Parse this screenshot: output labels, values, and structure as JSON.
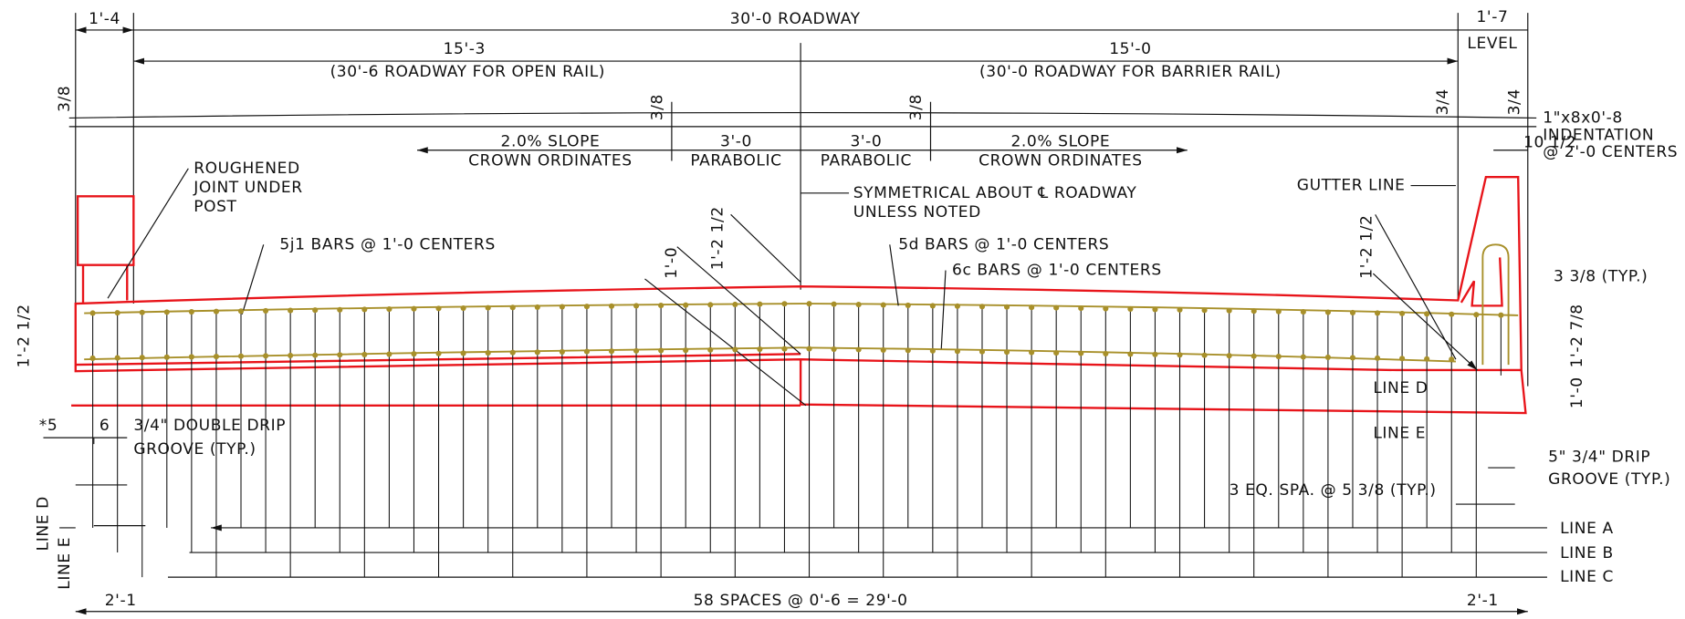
{
  "dimensions": {
    "left_overhang": "1'-4",
    "roadway": "30'-0 ROADWAY",
    "right_overhang": "1'-7",
    "level": "LEVEL",
    "left_half": "15'-3",
    "left_half_note": "(30'-6 ROADWAY FOR OPEN RAIL)",
    "right_half": "15'-0",
    "right_half_note": "(30'-0 ROADWAY FOR BARRIER RAIL)",
    "left_rise": "3/8",
    "crown_rise_left": "3/8",
    "crown_rise_right": "3/8",
    "gutter_drop": "3/4",
    "rail_drop": "3/4",
    "rail_width": "10 1/2",
    "left_depth": "1'-2 1/2",
    "mid_depth": "1'-2 1/2",
    "mid_cover": "1'-0",
    "right_depth": "1'-2 1/2",
    "rail_bar_offset": "3 3/8 (TYP.)",
    "right_slab_depth": "1'-2 7/8",
    "right_bottom": "1'-0",
    "left_edge": "*5",
    "groove_offset": "6",
    "bottom_left": "2'-1",
    "bottom_spaces": "58 SPACES @ 0'-6 = 29'-0",
    "bottom_right": "2'-1"
  },
  "notes": {
    "indentation": [
      "1\"x8x0'-8",
      "INDENTATION",
      "@ 2'-0 CENTERS"
    ],
    "slope_left": [
      "2.0% SLOPE",
      "CROWN ORDINATES"
    ],
    "parabolic_left": [
      "3'-0",
      "PARABOLIC"
    ],
    "parabolic_right": [
      "3'-0",
      "PARABOLIC"
    ],
    "slope_right": [
      "2.0% SLOPE",
      "CROWN ORDINATES"
    ],
    "roughened": [
      "ROUGHENED",
      "JOINT UNDER",
      "POST"
    ],
    "symmetrical": [
      "SYMMETRICAL ABOUT ℄ ROADWAY",
      "UNLESS NOTED"
    ],
    "gutter": "GUTTER LINE",
    "bars_5j1": "5j1 BARS @ 1'-0 CENTERS",
    "bars_5d": "5d BARS @ 1'-0 CENTERS",
    "bars_6c": "6c BARS @ 1'-0 CENTERS",
    "drip_right": [
      "5\"  3/4\" DRIP",
      "GROOVE (TYP.)"
    ],
    "eq_spa": "3 EQ. SPA. @ 5 3/8 (TYP.)",
    "drip_left": [
      "3/4\" DOUBLE DRIP",
      "GROOVE (TYP.)"
    ]
  },
  "lines": {
    "left_d": "LINE D",
    "left_e": "LINE E",
    "right_d": "LINE D",
    "right_e": "LINE E",
    "a": "LINE A",
    "b": "LINE B",
    "c": "LINE C"
  }
}
